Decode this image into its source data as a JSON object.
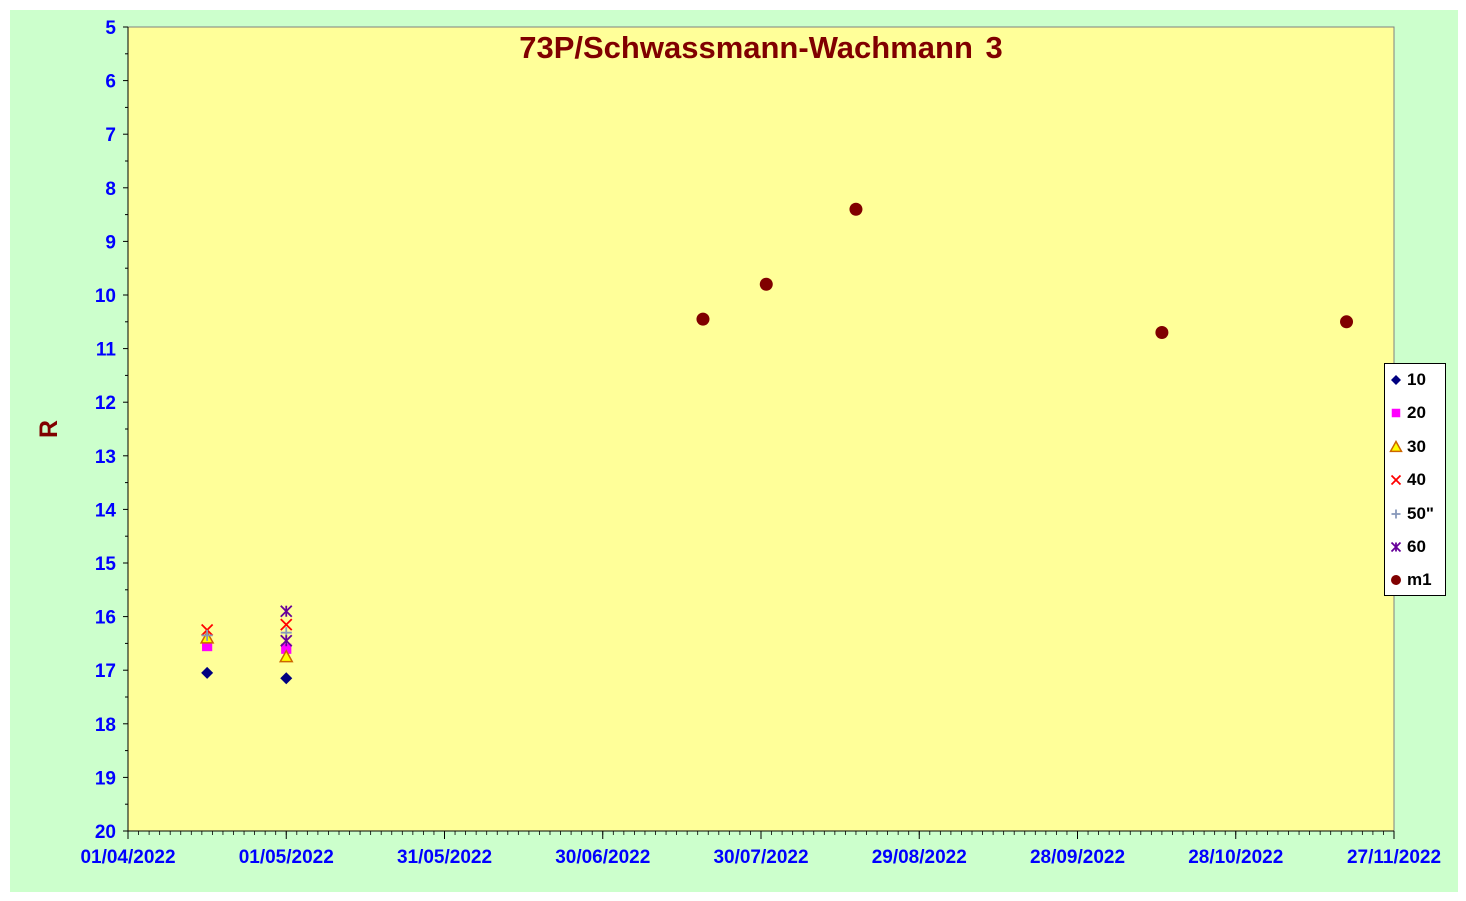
{
  "chart_data": {
    "type": "scatter",
    "title": "73P/Schwassmann-Wachmann  3",
    "xlabel": "",
    "ylabel": "R",
    "x_axis": {
      "type": "date",
      "min": "2022-04-01",
      "max": "2022-11-27",
      "tick_labels": [
        "01/04/2022",
        "01/05/2022",
        "31/05/2022",
        "30/06/2022",
        "30/07/2022",
        "29/08/2022",
        "28/09/2022",
        "28/10/2022",
        "27/11/2022"
      ]
    },
    "y_axis": {
      "reversed": true,
      "min": 5,
      "max": 20,
      "tick_labels": [
        "5",
        "6",
        "7",
        "8",
        "9",
        "10",
        "11",
        "12",
        "13",
        "14",
        "15",
        "16",
        "17",
        "18",
        "19",
        "20"
      ]
    },
    "grid": false,
    "legend_position": "right",
    "series": [
      {
        "name": "10",
        "marker": "diamond",
        "color": "#000080",
        "points": [
          {
            "x": "2022-04-16",
            "y": 17.05
          },
          {
            "x": "2022-05-01",
            "y": 17.15
          }
        ]
      },
      {
        "name": "20",
        "marker": "square",
        "color": "#ff00ff",
        "points": [
          {
            "x": "2022-04-16",
            "y": 16.55
          },
          {
            "x": "2022-05-01",
            "y": 16.6
          }
        ]
      },
      {
        "name": "30",
        "marker": "triangle",
        "color": "#ffff00",
        "stroke": "#cc6600",
        "points": [
          {
            "x": "2022-04-16",
            "y": 16.4
          },
          {
            "x": "2022-05-01",
            "y": 16.75
          }
        ]
      },
      {
        "name": "40",
        "marker": "x",
        "color": "#ff0000",
        "points": [
          {
            "x": "2022-04-16",
            "y": 16.25
          },
          {
            "x": "2022-05-01",
            "y": 16.15
          }
        ]
      },
      {
        "name": "50\"",
        "marker": "plus",
        "color": "#8899bb",
        "points": [
          {
            "x": "2022-04-16",
            "y": 16.35
          },
          {
            "x": "2022-05-01",
            "y": 16.3
          }
        ]
      },
      {
        "name": "60",
        "marker": "star",
        "color": "#660099",
        "points": [
          {
            "x": "2022-05-01",
            "y": 15.9
          },
          {
            "x": "2022-05-01",
            "y": 16.45
          }
        ]
      },
      {
        "name": "m1",
        "marker": "circle",
        "color": "#800000",
        "points": [
          {
            "x": "2022-07-19",
            "y": 10.45
          },
          {
            "x": "2022-07-31",
            "y": 9.8
          },
          {
            "x": "2022-08-17",
            "y": 8.4
          },
          {
            "x": "2022-10-14",
            "y": 10.7
          },
          {
            "x": "2022-11-18",
            "y": 10.5
          }
        ]
      }
    ]
  },
  "colors": {
    "outer_background": "#ccffcc",
    "plot_background": "#ffff99",
    "tick_label": "#0000ff",
    "title": "#800000"
  }
}
